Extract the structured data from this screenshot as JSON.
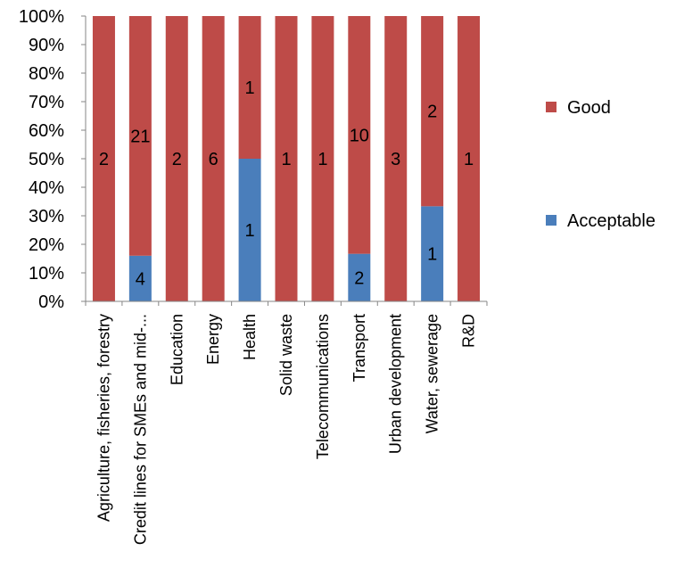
{
  "chart_data": {
    "type": "bar",
    "stacked": "percent",
    "categories": [
      "Agriculture, fisheries, forestry",
      "Credit lines for SMEs and mid-...",
      "Education",
      "Energy",
      "Health",
      "Solid waste",
      "Telecommunications",
      "Transport",
      "Urban development",
      "Water, sewerage",
      "R&D"
    ],
    "series": [
      {
        "name": "Acceptable",
        "color": "#4a7ebb",
        "values": [
          0,
          4,
          0,
          0,
          1,
          0,
          0,
          2,
          0,
          1,
          0
        ]
      },
      {
        "name": "Good",
        "color": "#be4b48",
        "values": [
          2,
          21,
          2,
          6,
          1,
          1,
          1,
          10,
          3,
          2,
          1
        ]
      }
    ],
    "y_ticks": [
      "0%",
      "10%",
      "20%",
      "30%",
      "40%",
      "50%",
      "60%",
      "70%",
      "80%",
      "90%",
      "100%"
    ],
    "ylim": [
      0,
      100
    ],
    "legend": {
      "position": "right",
      "items": [
        "Good",
        "Acceptable"
      ]
    },
    "grid": false
  }
}
